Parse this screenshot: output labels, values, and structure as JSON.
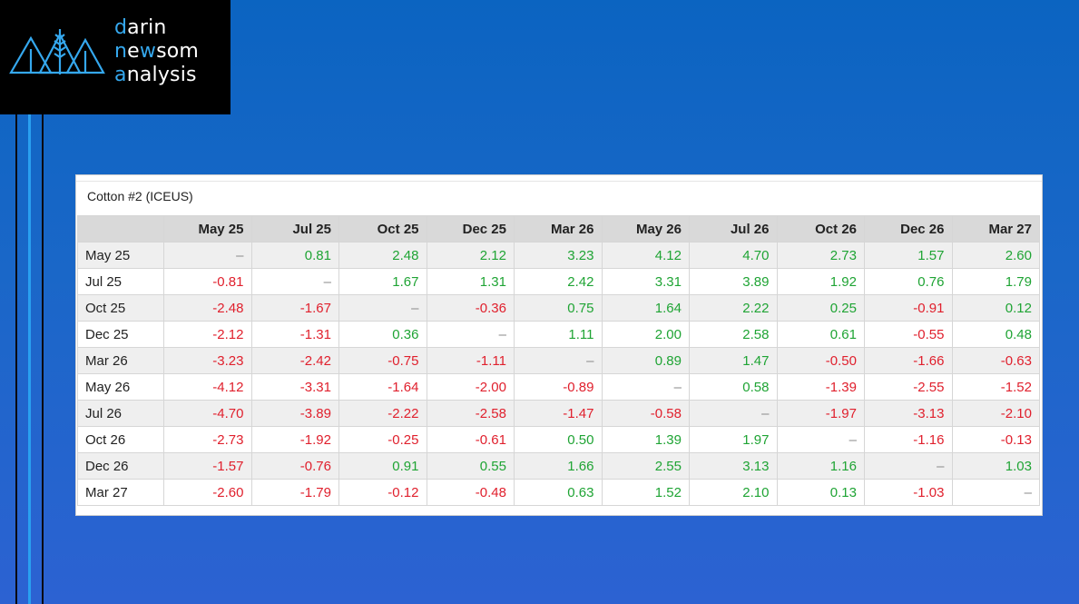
{
  "logo": {
    "line1_accent": "d",
    "line1_rest": "arin",
    "line2_accent1": "n",
    "line2_mid1": "e",
    "line2_accent2": "w",
    "line2_rest": "som",
    "line3_accent": "a",
    "line3_rest": "nalysis"
  },
  "colors": {
    "positive": "#1fa434",
    "negative": "#e0202d",
    "accent": "#35a8ee",
    "background_top": "#0b64c1",
    "background_bottom": "#2c62d2"
  },
  "table": {
    "title": "Cotton #2 (ICEUS)",
    "columns": [
      "May 25",
      "Jul 25",
      "Oct 25",
      "Dec 25",
      "Mar 26",
      "May 26",
      "Jul 26",
      "Oct 26",
      "Dec 26",
      "Mar 27"
    ],
    "rows": [
      {
        "label": "May 25",
        "values": [
          "–",
          "0.81",
          "2.48",
          "2.12",
          "3.23",
          "4.12",
          "4.70",
          "2.73",
          "1.57",
          "2.60"
        ]
      },
      {
        "label": "Jul 25",
        "values": [
          "-0.81",
          "–",
          "1.67",
          "1.31",
          "2.42",
          "3.31",
          "3.89",
          "1.92",
          "0.76",
          "1.79"
        ]
      },
      {
        "label": "Oct 25",
        "values": [
          "-2.48",
          "-1.67",
          "–",
          "-0.36",
          "0.75",
          "1.64",
          "2.22",
          "0.25",
          "-0.91",
          "0.12"
        ]
      },
      {
        "label": "Dec 25",
        "values": [
          "-2.12",
          "-1.31",
          "0.36",
          "–",
          "1.11",
          "2.00",
          "2.58",
          "0.61",
          "-0.55",
          "0.48"
        ]
      },
      {
        "label": "Mar 26",
        "values": [
          "-3.23",
          "-2.42",
          "-0.75",
          "-1.11",
          "–",
          "0.89",
          "1.47",
          "-0.50",
          "-1.66",
          "-0.63"
        ]
      },
      {
        "label": "May 26",
        "values": [
          "-4.12",
          "-3.31",
          "-1.64",
          "-2.00",
          "-0.89",
          "–",
          "0.58",
          "-1.39",
          "-2.55",
          "-1.52"
        ]
      },
      {
        "label": "Jul 26",
        "values": [
          "-4.70",
          "-3.89",
          "-2.22",
          "-2.58",
          "-1.47",
          "-0.58",
          "–",
          "-1.97",
          "-3.13",
          "-2.10"
        ]
      },
      {
        "label": "Oct 26",
        "values": [
          "-2.73",
          "-1.92",
          "-0.25",
          "-0.61",
          "0.50",
          "1.39",
          "1.97",
          "–",
          "-1.16",
          "-0.13"
        ]
      },
      {
        "label": "Dec 26",
        "values": [
          "-1.57",
          "-0.76",
          "0.91",
          "0.55",
          "1.66",
          "2.55",
          "3.13",
          "1.16",
          "–",
          "1.03"
        ]
      },
      {
        "label": "Mar 27",
        "values": [
          "-2.60",
          "-1.79",
          "-0.12",
          "-0.48",
          "0.63",
          "1.52",
          "2.10",
          "0.13",
          "-1.03",
          "–"
        ]
      }
    ]
  }
}
